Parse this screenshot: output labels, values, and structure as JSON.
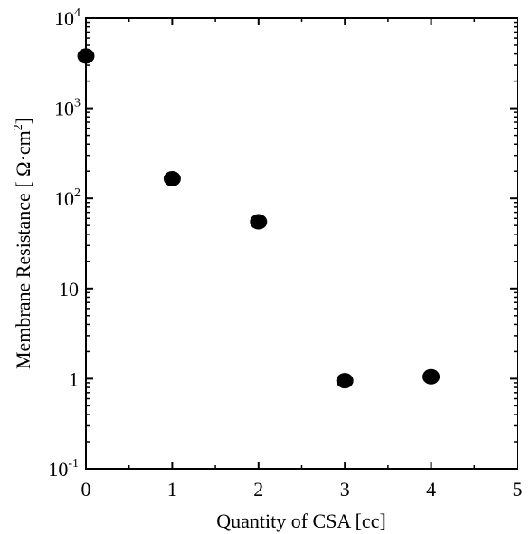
{
  "chart_data": {
    "type": "scatter",
    "title": "",
    "xlabel": "Quantity of CSA [cc]",
    "ylabel_prefix": "Membrane Resistance [",
    "ylabel_unit": " Ω·cm",
    "ylabel_unit_sup": "2",
    "ylabel_suffix": "]",
    "xlim": [
      0,
      5
    ],
    "ylim": [
      0.1,
      10000
    ],
    "yscale": "log",
    "grid": false,
    "x_ticks": [
      {
        "value": 0,
        "label": "0"
      },
      {
        "value": 1,
        "label": "1"
      },
      {
        "value": 2,
        "label": "2"
      },
      {
        "value": 3,
        "label": "3"
      },
      {
        "value": 4,
        "label": "4"
      },
      {
        "value": 5,
        "label": "5"
      }
    ],
    "y_ticks": [
      {
        "value": 0.1,
        "base": "10",
        "sup": "-1"
      },
      {
        "value": 1,
        "base": "1",
        "sup": ""
      },
      {
        "value": 10,
        "base": "10",
        "sup": ""
      },
      {
        "value": 100,
        "base": "10",
        "sup": "2"
      },
      {
        "value": 1000,
        "base": "10",
        "sup": "3"
      },
      {
        "value": 10000,
        "base": "10",
        "sup": "4"
      }
    ],
    "points": [
      {
        "x": 0,
        "y": 3800
      },
      {
        "x": 1,
        "y": 165
      },
      {
        "x": 2,
        "y": 55
      },
      {
        "x": 3,
        "y": 0.95
      },
      {
        "x": 4,
        "y": 1.05
      }
    ],
    "marker_color": "#000000"
  }
}
